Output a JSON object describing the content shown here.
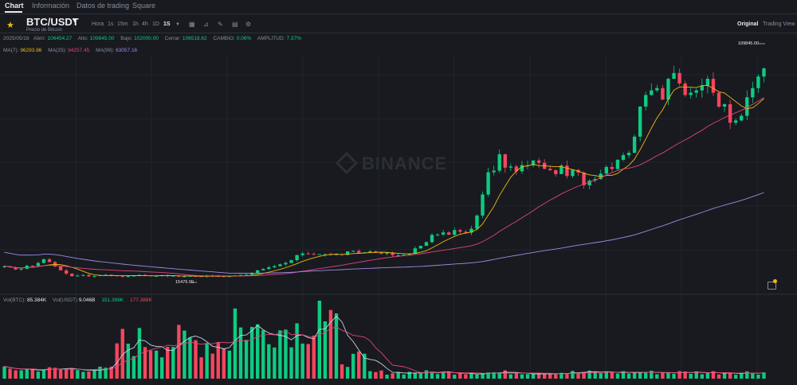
{
  "tabs": [
    {
      "label": "Chart",
      "active": true
    },
    {
      "label": "Información",
      "active": false
    },
    {
      "label": "Datos de trading",
      "active": false
    },
    {
      "label": "Square",
      "active": false
    }
  ],
  "header": {
    "pair": "BTC/USDT",
    "subtitle": "Precio de Bitcoin",
    "timeframes": [
      {
        "label": "Hora",
        "selected": false
      },
      {
        "label": "1s",
        "selected": false
      },
      {
        "label": "15m",
        "selected": false
      },
      {
        "label": "1h",
        "selected": false
      },
      {
        "label": "4h",
        "selected": false
      },
      {
        "label": "1D",
        "selected": false
      },
      {
        "label": "1S",
        "selected": true
      }
    ],
    "views": [
      "Original",
      "Trading View"
    ]
  },
  "ohlc": {
    "date": "2025/05/18",
    "open_label": "Abrir:",
    "open": "106454.27",
    "high_label": "Alto:",
    "high": "109845.00",
    "low_label": "Bajo:",
    "low": "102000.00",
    "close_label": "Cerrar:",
    "close": "106518.62",
    "change_label": "CAMBIO:",
    "change": "0.06%",
    "amp_label": "AMPLITUD:",
    "amp": "7.37%"
  },
  "ma": {
    "ma7_label": "MA(7):",
    "ma7": "96293.86",
    "ma25_label": "MA(25):",
    "ma25": "94257.45",
    "ma99_label": "MA(99):",
    "ma99": "63057.16"
  },
  "volume": {
    "vol_btc_label": "Vol(BTC):",
    "vol_btc": "85.384K",
    "vol_usdt_label": "Vol(USDT)",
    "vol_usdt": "9.046B",
    "v2": "151.396K",
    "v3": "177.388K"
  },
  "annotations": {
    "high_price": "109845.00",
    "low_price": "15476.00"
  },
  "watermark": "BINANCE",
  "colors": {
    "up": "#0ecb81",
    "down": "#f6465d",
    "ma7": "#f0b90b",
    "ma25": "#e0457a",
    "ma99": "#9f8ae6",
    "bg": "#181a20"
  },
  "chart_data": {
    "type": "candlestick",
    "ylim": [
      14000,
      112000
    ],
    "series_close": [
      21000,
      20500,
      19600,
      19900,
      21200,
      21100,
      22400,
      24000,
      22800,
      20900,
      19200,
      17800,
      16700,
      16900,
      17200,
      16600,
      16800,
      17100,
      17300,
      17000,
      16800,
      16600,
      16700,
      16900,
      17200,
      17000,
      16800,
      16800,
      17100,
      16700,
      16900,
      16500,
      16600,
      16800,
      16700,
      16500,
      16900,
      16800,
      16700,
      16400,
      16700,
      17000,
      17200,
      17300,
      17900,
      19200,
      19800,
      20500,
      21000,
      21800,
      22400,
      23600,
      25800,
      26500,
      26300,
      26000,
      26200,
      26100,
      25800,
      26200,
      25900,
      27400,
      27600,
      26800,
      27000,
      27400,
      26800,
      26400,
      26900,
      25800,
      25700,
      25900,
      26400,
      28700,
      29800,
      31400,
      34500,
      34700,
      35600,
      34600,
      36600,
      35900,
      35500,
      37200,
      42900,
      52000,
      61600,
      62300,
      69400,
      63600,
      64100,
      62000,
      64700,
      64600,
      66700,
      65700,
      63100,
      62500,
      60800,
      64500,
      60000,
      62600,
      61500,
      56000,
      58000,
      58700,
      61000,
      63900,
      63000,
      67000,
      69000,
      70000,
      77000,
      90000,
      95000,
      97000,
      98000,
      93000,
      102000,
      104500,
      100000,
      95000,
      96000,
      97000,
      99000,
      102000,
      96000,
      90000,
      91000,
      83000,
      84000,
      86000,
      94000,
      98000,
      103000,
      106500
    ]
  }
}
